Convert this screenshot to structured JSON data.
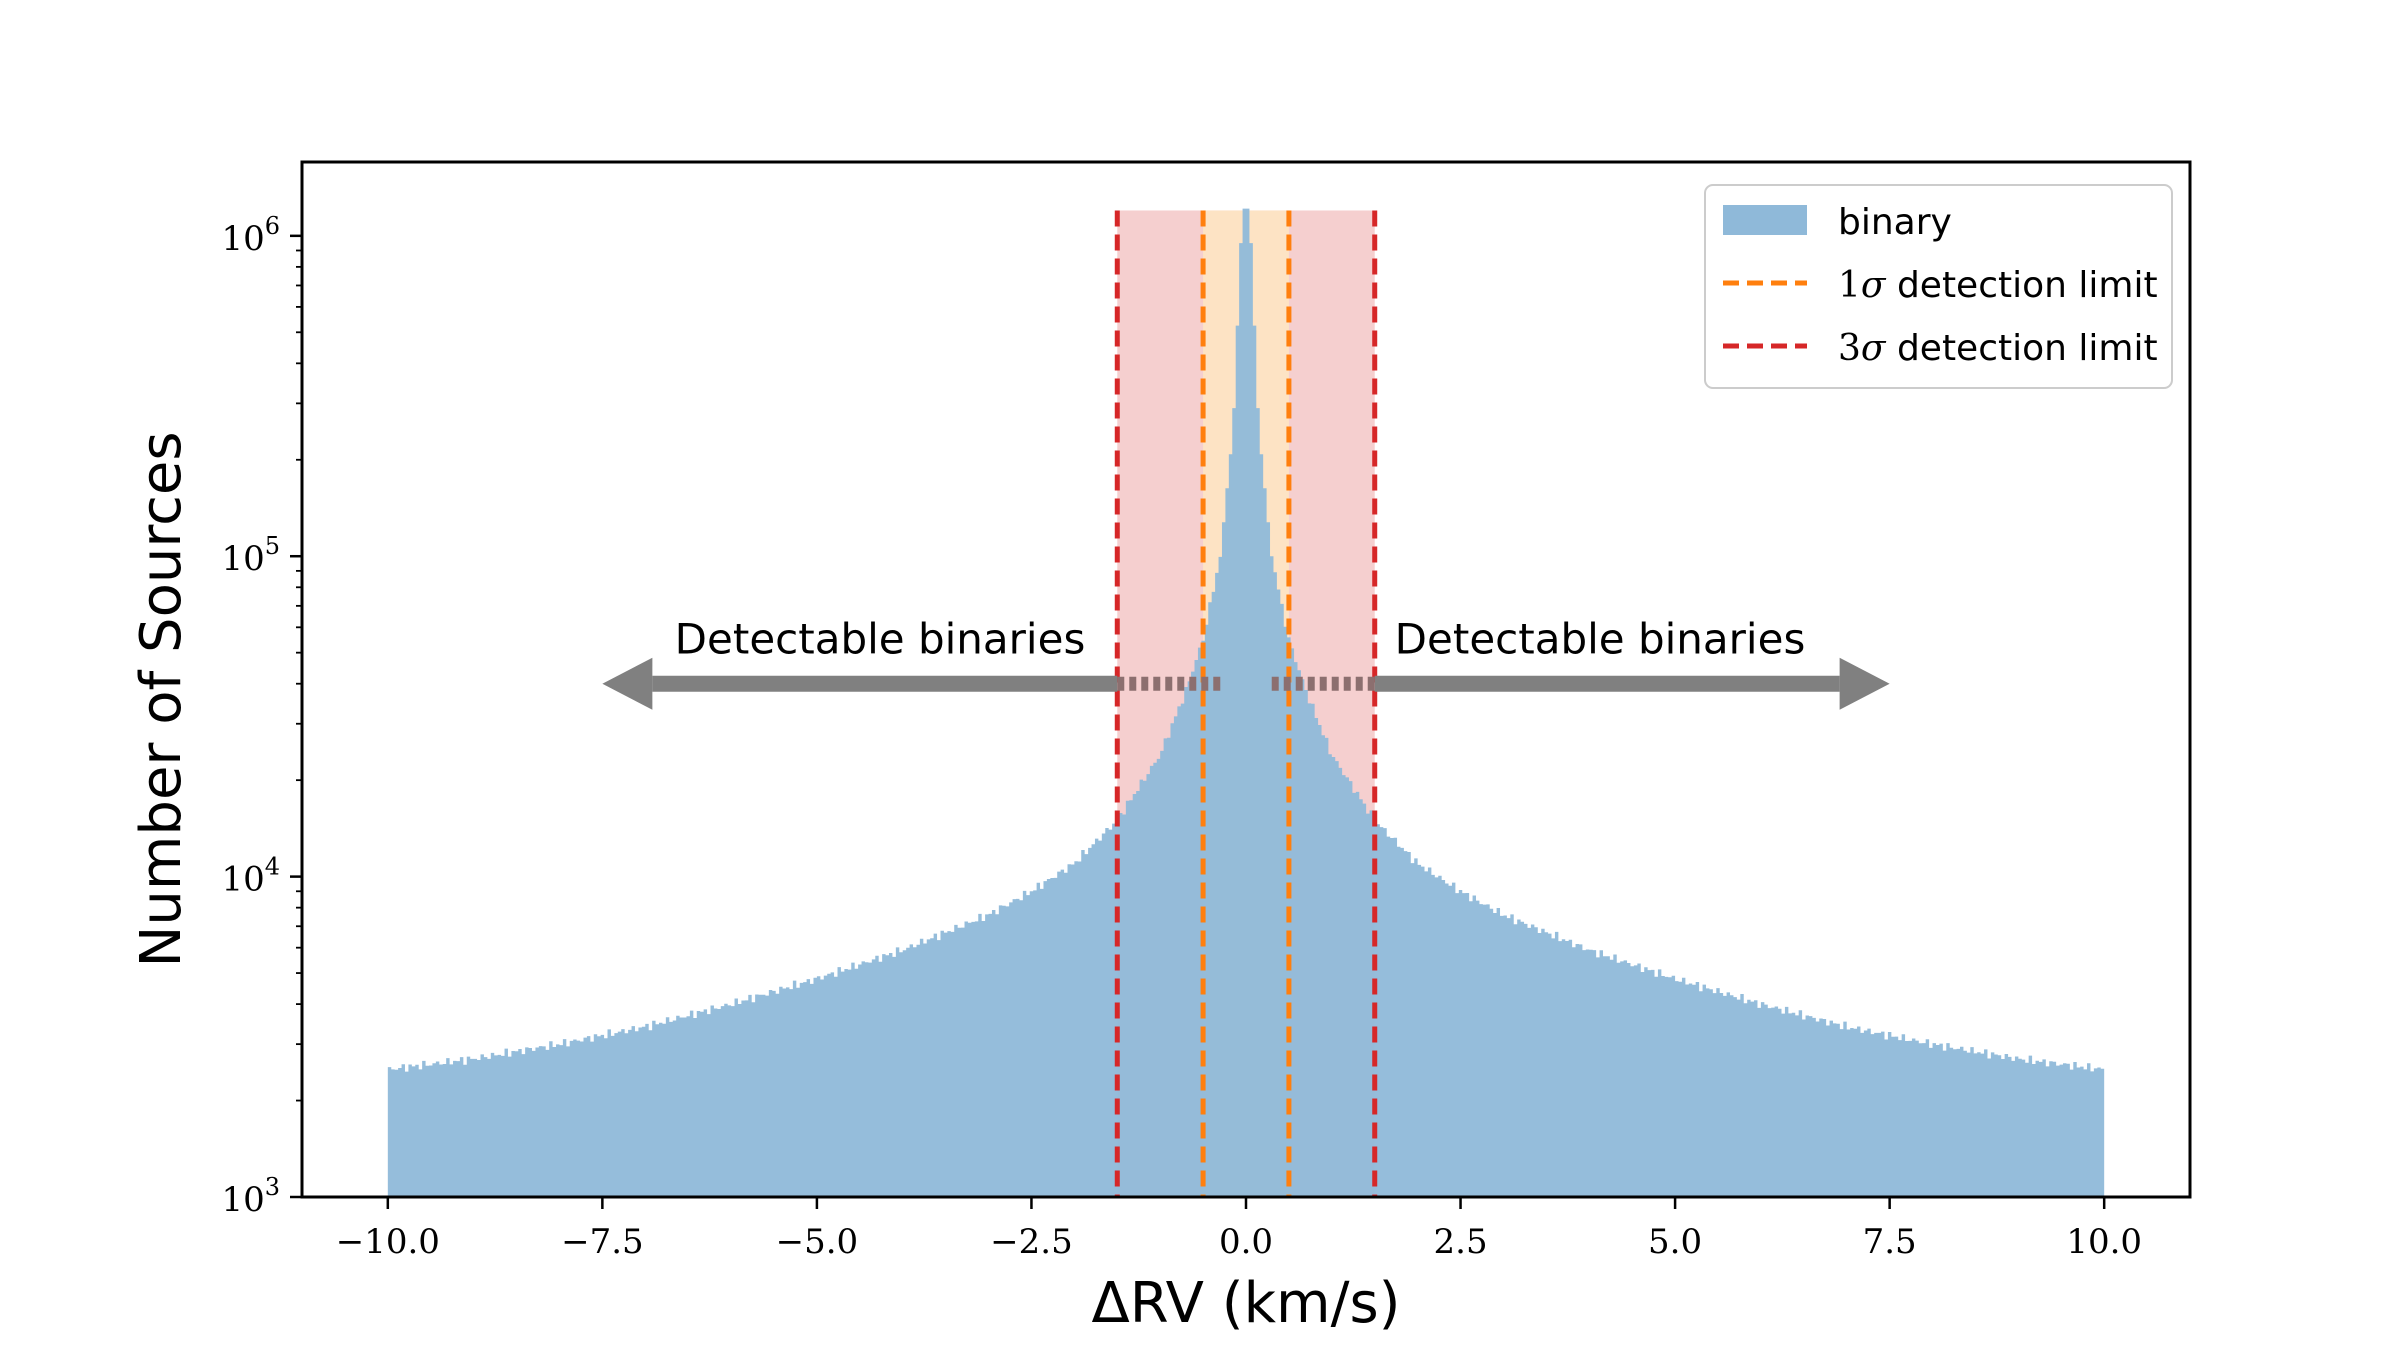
{
  "chart_data": {
    "type": "histogram",
    "xlabel": "ΔRV (km/s)",
    "ylabel": "Number of Sources",
    "xlim": [
      -11,
      11
    ],
    "ylim": [
      1000,
      1700000
    ],
    "yscale": "log",
    "xticks": [
      -10.0,
      -7.5,
      -5.0,
      -2.5,
      0.0,
      2.5,
      5.0,
      7.5,
      10.0
    ],
    "xtick_labels": [
      "−10.0",
      "−7.5",
      "−5.0",
      "−2.5",
      "0.0",
      "2.5",
      "5.0",
      "7.5",
      "10.0"
    ],
    "yticks": [
      1000,
      10000,
      100000,
      1000000
    ],
    "ytick_labels": [
      {
        "base": "10",
        "exp": "3"
      },
      {
        "base": "10",
        "exp": "4"
      },
      {
        "base": "10",
        "exp": "5"
      },
      {
        "base": "10",
        "exp": "6"
      }
    ],
    "grid": false,
    "legend_position": "top-right",
    "series": [
      {
        "name": "binary",
        "color": "#8fb9d9",
        "x": [
          -10.0,
          -9.0,
          -8.0,
          -7.0,
          -6.0,
          -5.0,
          -4.0,
          -3.0,
          -2.5,
          -2.0,
          -1.5,
          -1.0,
          -0.7,
          -0.5,
          -0.3,
          -0.15,
          -0.05,
          0.0,
          0.05,
          0.15,
          0.3,
          0.5,
          0.7,
          1.0,
          1.5,
          2.0,
          2.5,
          3.0,
          4.0,
          5.0,
          6.0,
          7.0,
          8.0,
          9.0,
          10.0
        ],
        "y": [
          2500,
          2700,
          3000,
          3400,
          4000,
          4800,
          5900,
          7600,
          9000,
          11000,
          15000,
          24000,
          38000,
          55000,
          100000,
          250000,
          1100000,
          1300000,
          1100000,
          250000,
          100000,
          55000,
          38000,
          24000,
          15000,
          11000,
          9000,
          7600,
          5900,
          4800,
          4000,
          3400,
          3000,
          2700,
          2500
        ]
      }
    ],
    "reference_lines": [
      {
        "name": "1σ detection limit",
        "sigma": "1",
        "label_text": "detection limit",
        "color": "#ff7f0e",
        "x": [
          -0.5,
          0.5
        ],
        "band_color": "#fde3c4"
      },
      {
        "name": "3σ detection limit",
        "sigma": "3",
        "label_text": "detection limit",
        "color": "#d62728",
        "x": [
          -1.5,
          1.5
        ],
        "band_color": "#f5cfcf"
      }
    ],
    "annotations": [
      {
        "text": "Detectable binaries",
        "direction": "left",
        "arrow_from": -1.5,
        "arrow_to": -7.5,
        "y": 40000
      },
      {
        "text": "Detectable binaries",
        "direction": "right",
        "arrow_from": 1.5,
        "arrow_to": 7.5,
        "y": 40000
      }
    ],
    "arrow_color": "#808080",
    "dotted_color": "#8c6f6f"
  }
}
